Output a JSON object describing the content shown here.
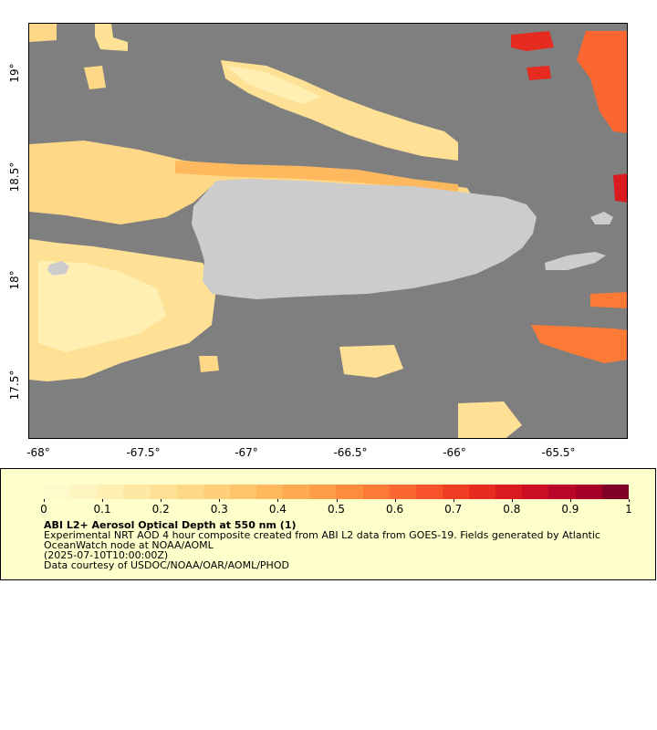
{
  "map": {
    "x_ticks": [
      "-68°",
      "-67.5°",
      "-67°",
      "-66.5°",
      "-66°",
      "-65.5°"
    ],
    "y_ticks": [
      "19°",
      "18.5°",
      "18°",
      "17.5°"
    ],
    "colors": {
      "ocean": "#7f7f7f",
      "land": "#cccccc"
    }
  },
  "legend": {
    "tick_labels": [
      "0",
      "0.1",
      "0.2",
      "0.3",
      "0.4",
      "0.5",
      "0.6",
      "0.7",
      "0.8",
      "0.9",
      "1"
    ],
    "colors": [
      "#fffacb",
      "#fff5c0",
      "#ffefb3",
      "#ffe8a4",
      "#ffe196",
      "#ffd887",
      "#ffcf79",
      "#fec46a",
      "#feb95e",
      "#feab52",
      "#fd9d48",
      "#fd8d3c",
      "#fc7a36",
      "#fc6630",
      "#f8522b",
      "#f03e25",
      "#e62b21",
      "#da1b1f",
      "#cc0e23",
      "#b90527",
      "#a60026",
      "#800026"
    ],
    "title": "ABI L2+ Aerosol Optical Depth at 550 nm (1)",
    "line1": "Experimental NRT AOD 4 hour composite created from ABI L2 data from GOES-19. Fields generated by Atlantic OceanWatch node at NOAA/AOML",
    "line2": "(2025-07-10T10:00:00Z)",
    "line3": "Data courtesy of USDOC/NOAA/OAR/AOML/PHOD"
  }
}
